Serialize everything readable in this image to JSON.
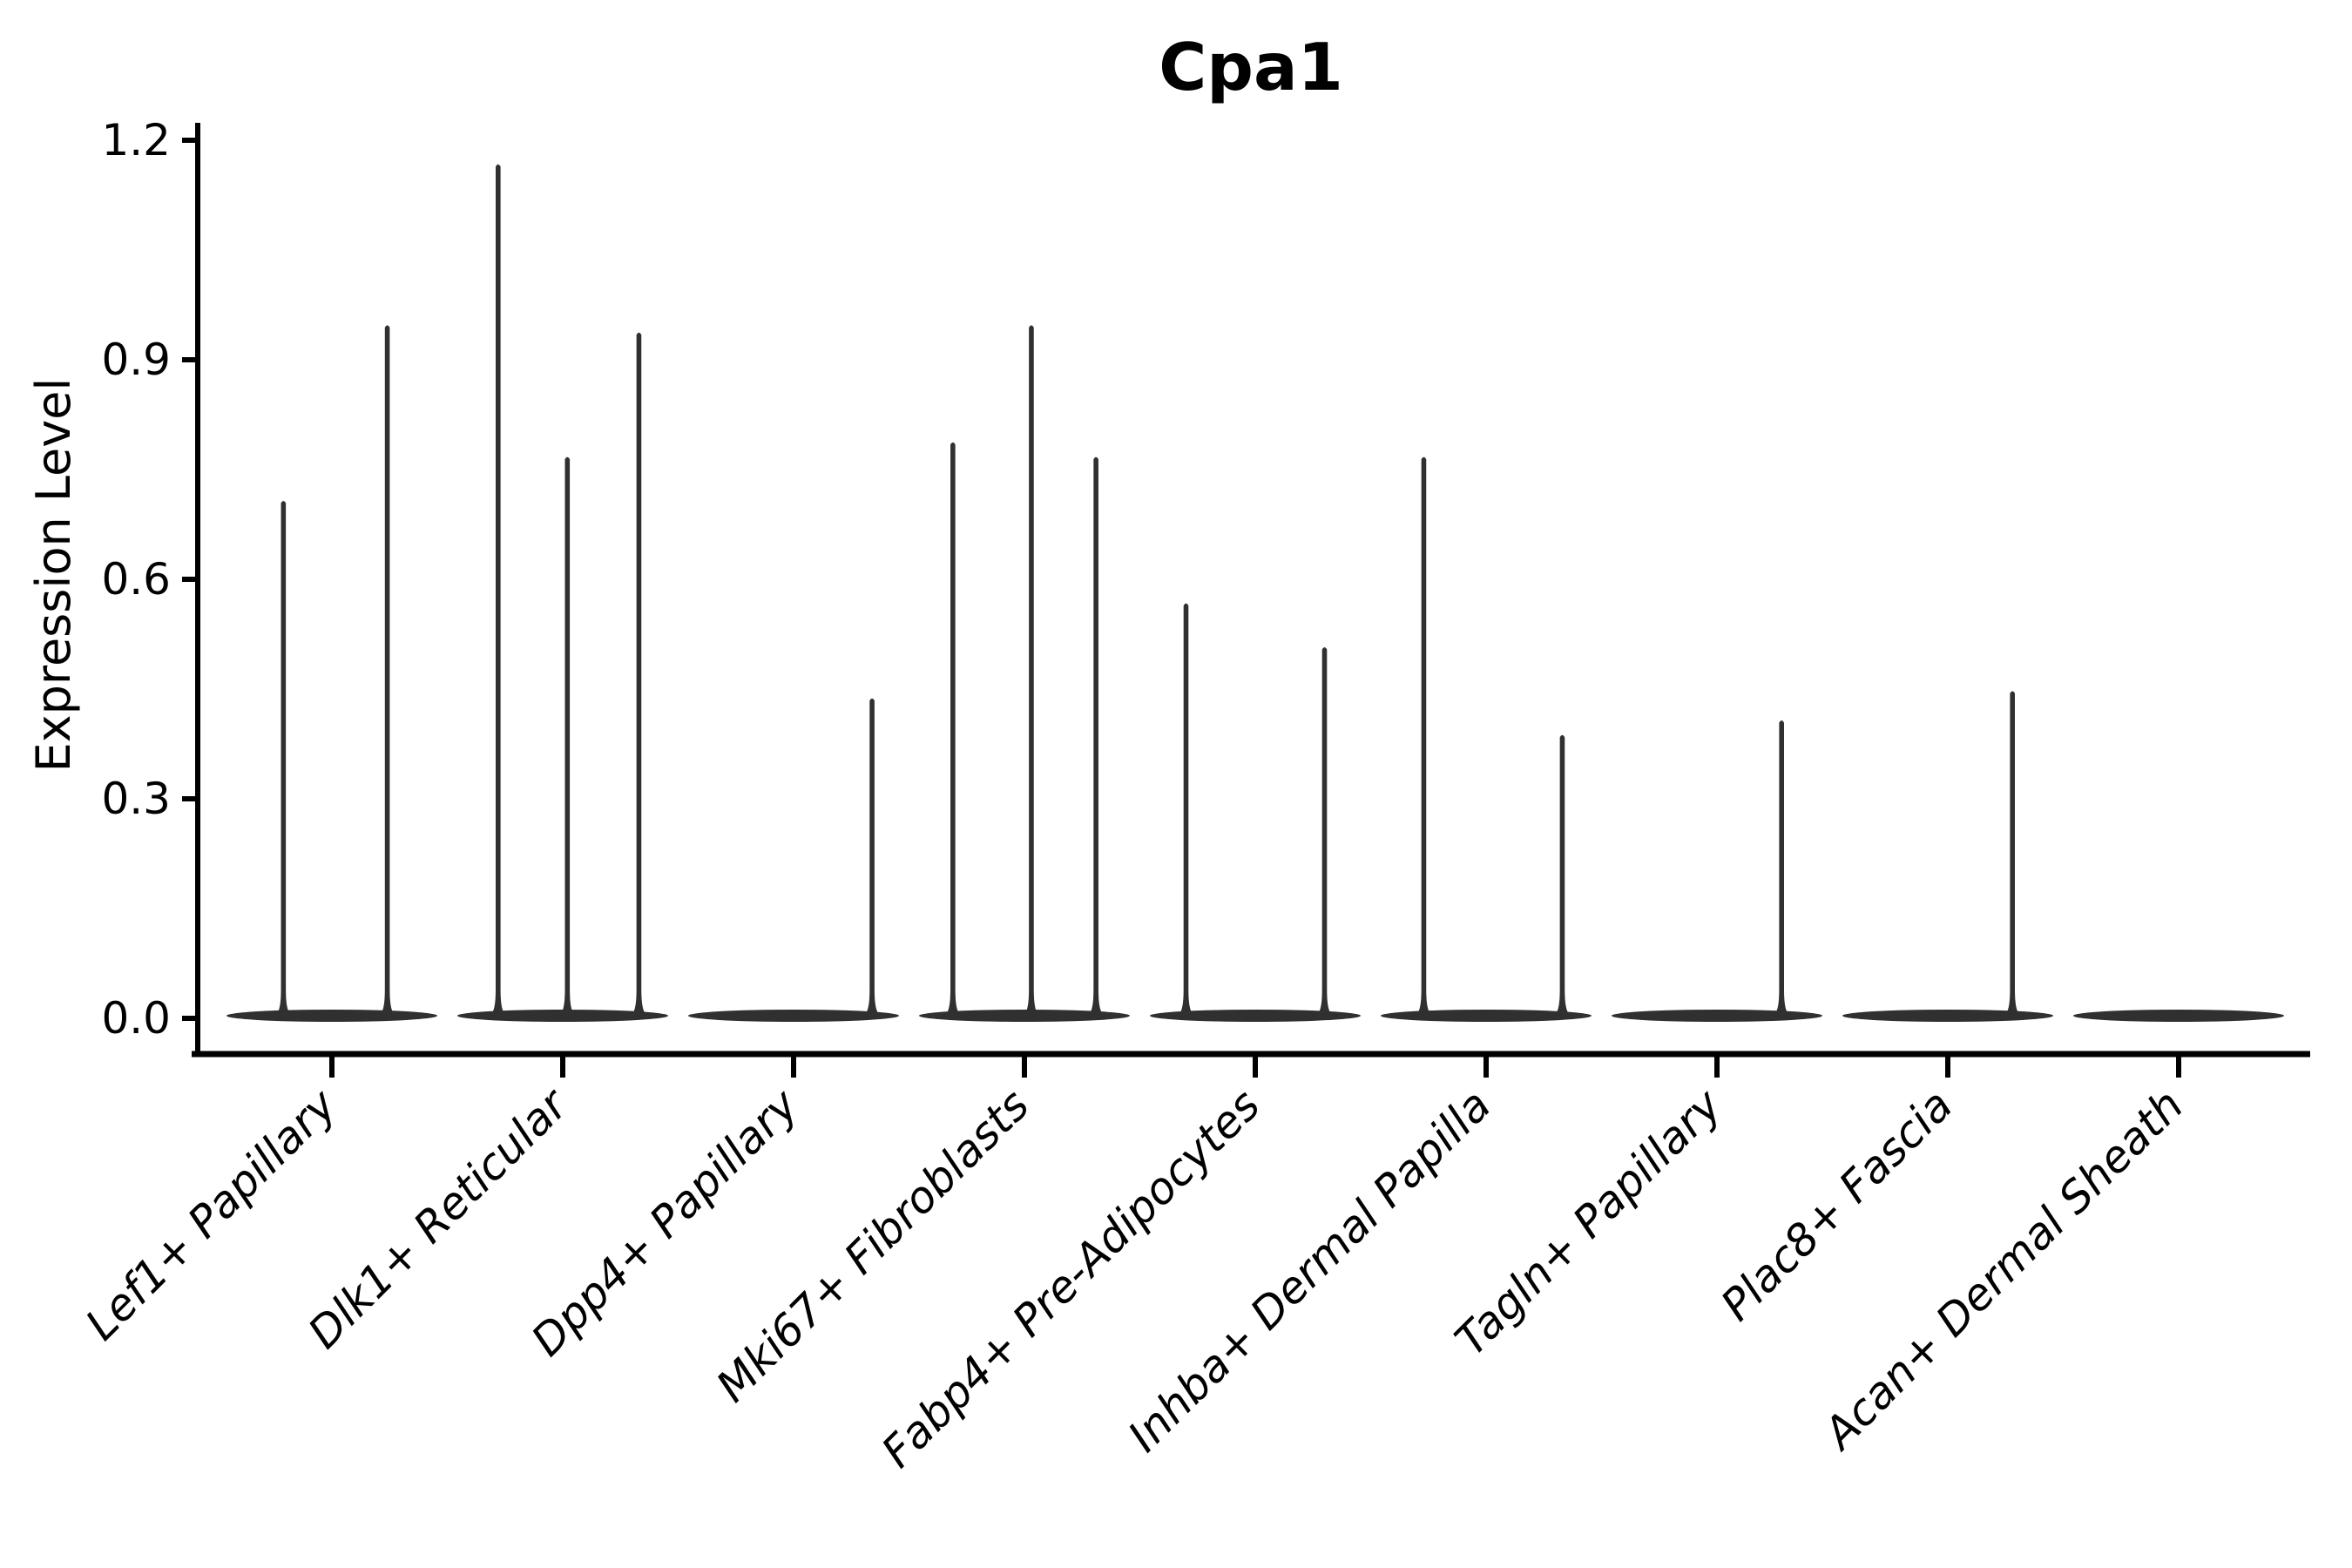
{
  "chart_data": {
    "type": "violin",
    "title": "Cpa1",
    "ylabel": "Expression Level",
    "xlabel": "",
    "grid": false,
    "legend": false,
    "ylim": [
      0.0,
      1.2
    ],
    "yticks": [
      "0.0",
      "0.3",
      "0.6",
      "0.9",
      "1.2"
    ],
    "ytick_values": [
      0.0,
      0.3,
      0.6,
      0.9,
      1.2
    ],
    "categories": [
      "Lef1+ Papillary",
      "Dlk1+ Reticular",
      "Dpp4+ Papillary",
      "Mki67+ Fibroblasts",
      "Fabp4+ Pre-Adipocytes",
      "Inhba+ Dermal Papilla",
      "Tagln+ Papillary",
      "Plac8+ Fascia",
      "Acan+ Dermal Sheath"
    ],
    "xtick_rotation_deg": 45,
    "series": [
      {
        "name": "Lef1+ Papillary",
        "spikes": [
          {
            "offset": -0.21,
            "value": 0.71
          },
          {
            "offset": 0.24,
            "value": 0.95
          }
        ]
      },
      {
        "name": "Dlk1+ Reticular",
        "spikes": [
          {
            "offset": -0.28,
            "value": 1.17
          },
          {
            "offset": 0.02,
            "value": 0.77
          },
          {
            "offset": 0.33,
            "value": 0.94
          }
        ]
      },
      {
        "name": "Dpp4+ Papillary",
        "spikes": [
          {
            "offset": 0.34,
            "value": 0.44
          }
        ]
      },
      {
        "name": "Mki67+ Fibroblasts",
        "spikes": [
          {
            "offset": -0.31,
            "value": 0.79
          },
          {
            "offset": 0.03,
            "value": 0.95
          },
          {
            "offset": 0.31,
            "value": 0.77
          }
        ]
      },
      {
        "name": "Fabp4+ Pre-Adipocytes",
        "spikes": [
          {
            "offset": -0.3,
            "value": 0.57
          },
          {
            "offset": 0.3,
            "value": 0.51
          }
        ]
      },
      {
        "name": "Inhba+ Dermal Papilla",
        "spikes": [
          {
            "offset": -0.27,
            "value": 0.77
          },
          {
            "offset": 0.33,
            "value": 0.39
          }
        ]
      },
      {
        "name": "Tagln+ Papillary",
        "spikes": [
          {
            "offset": 0.28,
            "value": 0.41
          }
        ]
      },
      {
        "name": "Plac8+ Fascia",
        "spikes": [
          {
            "offset": 0.28,
            "value": 0.45
          }
        ]
      },
      {
        "name": "Acan+ Dermal Sheath",
        "spikes": []
      }
    ]
  },
  "colors": {
    "violin": "#303030",
    "axis": "#000000",
    "text": "#000000",
    "background": "#ffffff"
  }
}
